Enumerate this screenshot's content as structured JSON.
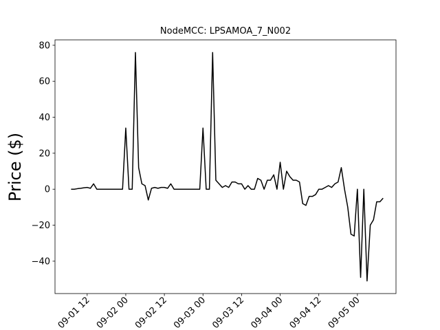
{
  "chart_data": {
    "type": "line",
    "title": "NodeMCC: LPSAMOA_7_N002",
    "y_label": "Price ($)",
    "x": [
      "09-01 07",
      "09-01 08",
      "09-01 09",
      "09-01 10",
      "09-01 11",
      "09-01 12",
      "09-01 13",
      "09-01 14",
      "09-01 15",
      "09-01 16",
      "09-01 17",
      "09-01 18",
      "09-01 19",
      "09-01 20",
      "09-01 21",
      "09-01 22",
      "09-01 23",
      "09-02 00",
      "09-02 01",
      "09-02 02",
      "09-02 03",
      "09-02 04",
      "09-02 05",
      "09-02 06",
      "09-02 07",
      "09-02 08",
      "09-02 09",
      "09-02 10",
      "09-02 11",
      "09-02 12",
      "09-02 13",
      "09-02 14",
      "09-02 15",
      "09-02 16",
      "09-02 17",
      "09-02 18",
      "09-02 19",
      "09-02 20",
      "09-02 21",
      "09-02 22",
      "09-02 23",
      "09-03 00",
      "09-03 01",
      "09-03 02",
      "09-03 03",
      "09-03 04",
      "09-03 05",
      "09-03 06",
      "09-03 07",
      "09-03 08",
      "09-03 09",
      "09-03 10",
      "09-03 11",
      "09-03 12",
      "09-03 13",
      "09-03 14",
      "09-03 15",
      "09-03 16",
      "09-03 17",
      "09-03 18",
      "09-03 19",
      "09-03 20",
      "09-03 21",
      "09-03 22",
      "09-03 23",
      "09-04 00",
      "09-04 01",
      "09-04 02",
      "09-04 03",
      "09-04 04",
      "09-04 05",
      "09-04 06",
      "09-04 07",
      "09-04 08",
      "09-04 09",
      "09-04 10",
      "09-04 11",
      "09-04 12",
      "09-04 13",
      "09-04 14",
      "09-04 15",
      "09-04 16",
      "09-04 17",
      "09-04 18",
      "09-04 19",
      "09-04 20",
      "09-04 21",
      "09-04 22",
      "09-04 23",
      "09-05 00",
      "09-05 01",
      "09-05 02",
      "09-05 03",
      "09-05 04",
      "09-05 05",
      "09-05 06",
      "09-05 07",
      "09-05 08"
    ],
    "series": [
      {
        "color": "#000000",
        "values": [
          0,
          0,
          0.3,
          0.5,
          0.8,
          1,
          0.5,
          3,
          0,
          0,
          0,
          0,
          0,
          0,
          0,
          0,
          0,
          34,
          0,
          0,
          76,
          12,
          3,
          2,
          -6,
          0.5,
          1,
          0.5,
          1,
          1,
          0.5,
          3,
          0,
          0,
          0,
          0,
          0,
          0,
          0,
          0,
          0,
          34,
          0,
          0,
          76,
          5,
          3,
          1,
          2,
          1,
          4,
          4,
          3,
          3,
          0,
          2,
          0,
          0,
          6,
          5,
          0,
          5,
          5,
          8,
          0,
          15,
          0,
          10,
          7,
          5,
          5,
          4,
          -8,
          -9,
          -4,
          -4,
          -3,
          0,
          0,
          1,
          2,
          1,
          3,
          4,
          12,
          0,
          -10,
          -25,
          -26,
          0,
          -49,
          0,
          -51,
          -20,
          -17,
          -7,
          -7,
          -5
        ]
      }
    ],
    "xlim": [
      "09-01 02",
      "09-05 12"
    ],
    "xticks": [
      "09-01 12",
      "09-02 00",
      "09-02 12",
      "09-03 00",
      "09-03 12",
      "09-04 00",
      "09-04 12",
      "09-05 00"
    ],
    "ylim": [
      -58,
      83
    ],
    "yticks": [
      {
        "value": -40,
        "label": "−40"
      },
      {
        "value": -20,
        "label": "−20"
      },
      0,
      20,
      40,
      60,
      80
    ]
  }
}
